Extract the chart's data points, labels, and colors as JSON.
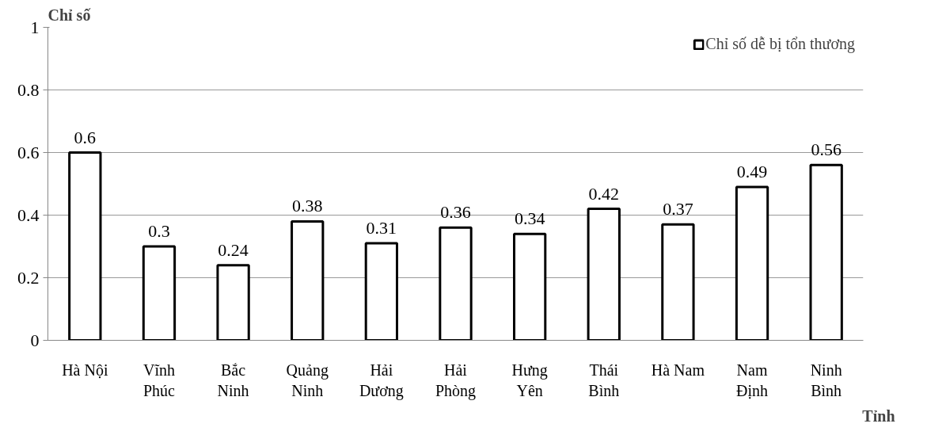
{
  "chart_data": {
    "type": "bar",
    "ylabel": "Chỉ số",
    "xlabel": "Tỉnh",
    "categories": [
      "Hà Nội",
      "Vĩnh\nPhúc",
      "Bắc\nNinh",
      "Quảng\nNinh",
      "Hải\nDương",
      "Hải\nPhòng",
      "Hưng\nYên",
      "Thái\nBình",
      "Hà Nam",
      "Nam\nĐịnh",
      "Ninh\nBình"
    ],
    "series": [
      {
        "name": "Chỉ số dễ bị tổn thương",
        "color": "#ffffff",
        "values": [
          0.6,
          0.3,
          0.24,
          0.38,
          0.31,
          0.36,
          0.34,
          0.42,
          0.37,
          0.49,
          0.56
        ]
      }
    ],
    "ylim": [
      0,
      1
    ],
    "yticks": [
      0,
      0.2,
      0.4,
      0.6,
      0.8,
      1
    ],
    "grid": "y",
    "legend": "top right",
    "data_labels": true
  }
}
